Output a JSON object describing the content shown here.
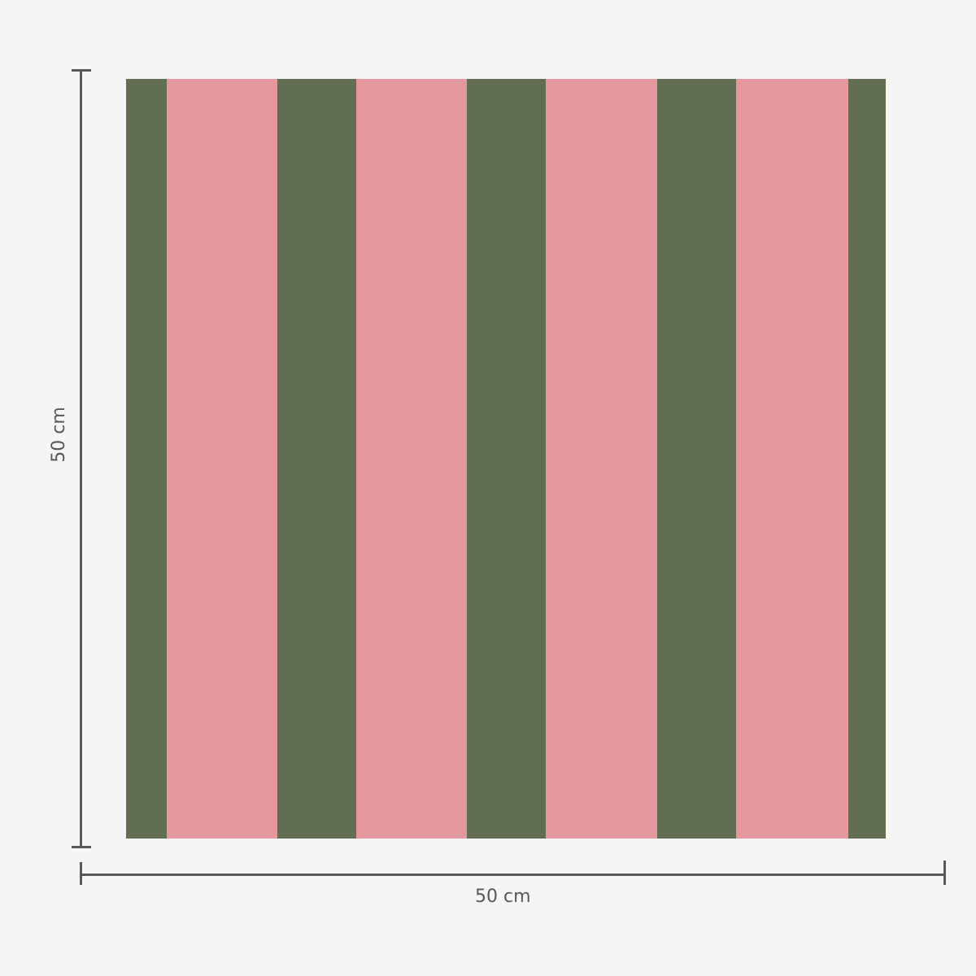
{
  "colors": {
    "green": "#616e52",
    "pink": "#e3979f",
    "background": "#f5f5f5",
    "dimension_line": "#58585a"
  },
  "pattern": [
    "green",
    "pink",
    "green",
    "pink",
    "green",
    "pink",
    "green",
    "pink",
    "green"
  ],
  "dimensions": {
    "height_label": "50 cm",
    "width_label": "50 cm"
  }
}
